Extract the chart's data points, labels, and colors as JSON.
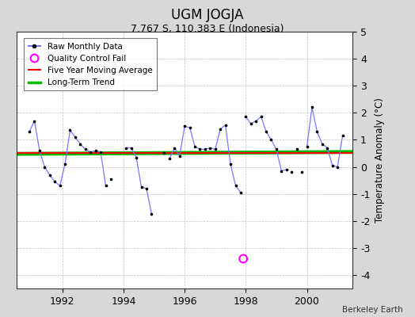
{
  "title": "UGM JOGJA",
  "subtitle": "7.767 S, 110.383 E (Indonesia)",
  "ylabel": "Temperature Anomaly (°C)",
  "credit": "Berkeley Earth",
  "ylim": [
    -4.5,
    5.0
  ],
  "xlim": [
    1990.5,
    2001.5
  ],
  "xticks": [
    1992,
    1994,
    1996,
    1998,
    2000
  ],
  "yticks": [
    -4,
    -3,
    -2,
    -1,
    0,
    1,
    2,
    3,
    4,
    5
  ],
  "background_color": "#d8d8d8",
  "plot_bg_color": "#ffffff",
  "segments": [
    [
      [
        1990.917,
        1.3
      ],
      [
        1991.083,
        1.7
      ],
      [
        1991.25,
        0.6
      ],
      [
        1991.417,
        0.0
      ],
      [
        1991.583,
        -0.3
      ],
      [
        1991.75,
        -0.55
      ],
      [
        1991.917,
        -0.7
      ],
      [
        1992.083,
        0.1
      ],
      [
        1992.25,
        1.35
      ],
      [
        1992.417,
        1.1
      ],
      [
        1992.583,
        0.85
      ],
      [
        1992.75,
        0.65
      ],
      [
        1992.917,
        0.55
      ],
      [
        1993.083,
        0.6
      ],
      [
        1993.25,
        0.55
      ],
      [
        1993.417,
        -0.7
      ]
    ],
    [
      [
        1993.583,
        -0.45
      ]
    ],
    [
      [
        1994.083,
        0.7
      ],
      [
        1994.25,
        0.7
      ],
      [
        1994.417,
        0.35
      ],
      [
        1994.583,
        -0.75
      ],
      [
        1994.75,
        -0.8
      ],
      [
        1994.917,
        -1.75
      ]
    ],
    [
      [
        1995.333,
        0.5
      ]
    ],
    [
      [
        1995.5,
        0.3
      ],
      [
        1995.667,
        0.7
      ],
      [
        1995.833,
        0.4
      ],
      [
        1996.0,
        1.5
      ],
      [
        1996.167,
        1.45
      ],
      [
        1996.333,
        0.75
      ],
      [
        1996.5,
        0.65
      ],
      [
        1996.667,
        0.65
      ],
      [
        1996.833,
        0.7
      ],
      [
        1997.0,
        0.65
      ],
      [
        1997.167,
        1.4
      ],
      [
        1997.333,
        1.55
      ],
      [
        1997.5,
        0.1
      ],
      [
        1997.667,
        -0.7
      ],
      [
        1997.833,
        -0.95
      ]
    ],
    [
      [
        1998.0,
        1.85
      ],
      [
        1998.167,
        1.6
      ],
      [
        1998.333,
        1.7
      ],
      [
        1998.5,
        1.85
      ],
      [
        1998.667,
        1.3
      ],
      [
        1998.833,
        1.0
      ],
      [
        1999.0,
        0.65
      ],
      [
        1999.167,
        -0.15
      ],
      [
        1999.333,
        -0.1
      ]
    ],
    [
      [
        1999.5,
        -0.2
      ]
    ],
    [
      [
        1999.667,
        0.65
      ]
    ],
    [
      [
        1999.833,
        -0.2
      ]
    ],
    [
      [
        2000.0,
        0.75
      ],
      [
        2000.167,
        2.2
      ],
      [
        2000.333,
        1.3
      ],
      [
        2000.5,
        0.85
      ],
      [
        2000.667,
        0.7
      ],
      [
        2000.833,
        0.05
      ],
      [
        2001.0,
        0.0
      ],
      [
        2001.167,
        1.15
      ]
    ]
  ],
  "qc_fail": [
    [
      1997.917,
      -3.4
    ]
  ],
  "trend_x": [
    1990.5,
    2001.5
  ],
  "trend_y": [
    0.48,
    0.55
  ],
  "line_color": "#7777ff",
  "dot_color": "#000000",
  "trend_color": "#00bb00",
  "moving_avg_color": "#ff0000",
  "qc_color": "#ff00ff"
}
